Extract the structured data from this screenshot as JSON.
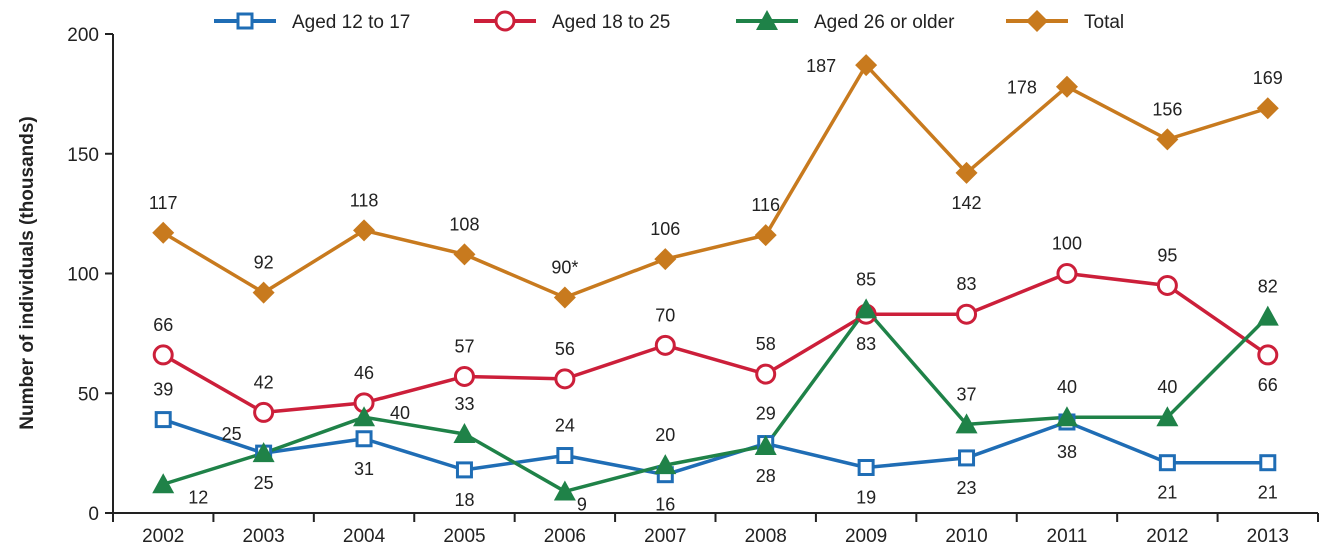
{
  "chart_data": {
    "type": "line",
    "title": "",
    "xlabel": "",
    "ylabel": "Number of individuals (thousands)",
    "ylim": [
      0,
      200
    ],
    "yticks": [
      "0",
      "50",
      "100",
      "150",
      "200"
    ],
    "categories": [
      "2002",
      "2003",
      "2004",
      "2005",
      "2006",
      "2007",
      "2008",
      "2009",
      "2010",
      "2011",
      "2012",
      "2013"
    ],
    "legend_position": "top",
    "series": [
      {
        "name": "Aged 12 to 17",
        "color": "#1f6db5",
        "marker": "square-open",
        "values": [
          39,
          25,
          31,
          18,
          24,
          16,
          29,
          19,
          23,
          38,
          21,
          21
        ],
        "labels": [
          "39",
          "25",
          "31",
          "18",
          "24",
          "16",
          "29",
          "19",
          "23",
          "38",
          "21",
          "21"
        ]
      },
      {
        "name": "Aged 18 to 25",
        "color": "#cc1f3a",
        "marker": "circle-open",
        "values": [
          66,
          42,
          46,
          57,
          56,
          70,
          58,
          83,
          83,
          100,
          95,
          66
        ],
        "labels": [
          "66",
          "42",
          "46",
          "57",
          "56",
          "70",
          "58",
          "83",
          "83",
          "100",
          "95",
          "66"
        ]
      },
      {
        "name": "Aged 26 or older",
        "color": "#1f8248",
        "marker": "triangle-filled",
        "values": [
          12,
          25,
          40,
          33,
          9,
          20,
          28,
          85,
          37,
          40,
          40,
          82
        ],
        "labels": [
          "12",
          "25",
          "40",
          "33",
          "9",
          "20",
          "28",
          "85",
          "37",
          "40",
          "40",
          "82"
        ]
      },
      {
        "name": "Total",
        "color": "#c87a1e",
        "marker": "diamond-filled",
        "values": [
          117,
          92,
          118,
          108,
          90,
          106,
          116,
          187,
          142,
          178,
          156,
          169
        ],
        "labels": [
          "117",
          "92",
          "118",
          "108",
          "90*",
          "106",
          "116",
          "187",
          "142",
          "178",
          "156",
          "169"
        ]
      }
    ]
  }
}
